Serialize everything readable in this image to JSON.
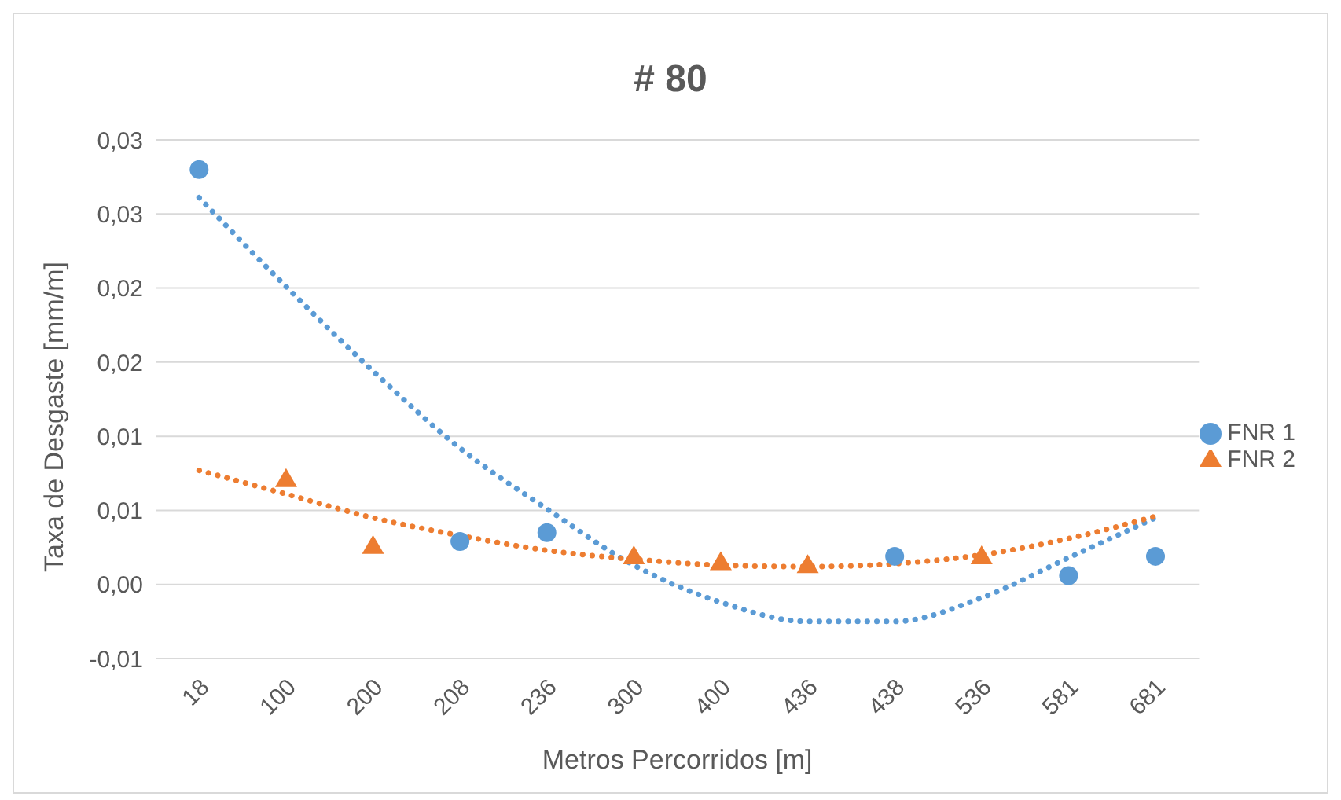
{
  "chart_data": {
    "type": "scatter",
    "title": "# 80",
    "xlabel": "Metros Percorridos [m]",
    "ylabel": "Taxa de Desgaste [mm/m]",
    "categories": [
      "18",
      "100",
      "200",
      "208",
      "236",
      "300",
      "400",
      "436",
      "438",
      "536",
      "581",
      "681"
    ],
    "series": [
      {
        "name": "FNR 1",
        "color": "#5b9bd5",
        "marker": "circle",
        "values": [
          0.028,
          null,
          null,
          0.0029,
          0.0035,
          null,
          null,
          null,
          0.0019,
          null,
          0.0006,
          0.0019
        ]
      },
      {
        "name": "FNR 2",
        "color": "#ed7d31",
        "marker": "triangle",
        "values": [
          null,
          0.0071,
          0.0026,
          null,
          null,
          0.0019,
          0.0015,
          0.0013,
          null,
          0.0019,
          null,
          null
        ]
      },
      {
        "type": "line",
        "color": "#5b9bd5",
        "line_style": "dotted",
        "marker": "none",
        "values": [
          0.0261,
          0.0201,
          0.0144,
          0.0092,
          0.0051,
          0.0013,
          -0.0012,
          -0.0025,
          -0.0025,
          -0.0009,
          0.0018,
          0.0045
        ]
      },
      {
        "type": "line",
        "color": "#ed7d31",
        "line_style": "dotted",
        "marker": "none",
        "values": [
          0.0077,
          0.0061,
          0.0045,
          0.0033,
          0.0023,
          0.0017,
          0.0013,
          0.0012,
          0.0014,
          0.002,
          0.0031,
          0.0046
        ]
      }
    ],
    "ylim": [
      -0.005,
      0.03
    ],
    "yticks": [
      {
        "value": -0.005,
        "label": "-0,01"
      },
      {
        "value": 0,
        "label": "0,00"
      },
      {
        "value": 0.005,
        "label": "0,01"
      },
      {
        "value": 0.01,
        "label": "0,01"
      },
      {
        "value": 0.015,
        "label": "0,02"
      },
      {
        "value": 0.02,
        "label": "0,02"
      },
      {
        "value": 0.025,
        "label": "0,03"
      },
      {
        "value": 0.03,
        "label": "0,03"
      }
    ],
    "grid": "y",
    "legend": "right"
  }
}
